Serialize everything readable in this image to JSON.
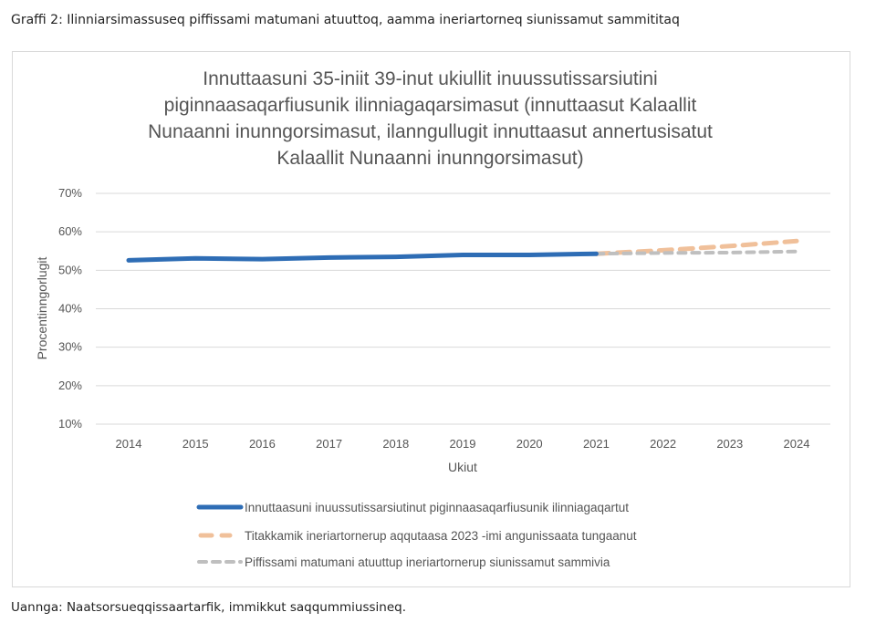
{
  "caption": "Graffi 2: Ilinniarsimassuseq piffissami matumani atuuttoq, aamma ineriartorneq siunissamut sammititaq",
  "source": "Uannga: Naatsorsueqqissaartarfik, immikkut saqqummiussineq.",
  "chart_data": {
    "type": "line",
    "title": [
      "Innuttaasuni 35-iniit 39-inut ukiullit inuussutissarsiutini",
      "piginnaasaqarfiusunik ilinniagaqarsimasut (innuttaasut Kalaallit",
      "Nunaanni inunngorsimasut, ilanngullugit innuttaasut annertusisatut",
      "Kalaallit Nunaanni inunngorsimasut)"
    ],
    "xlabel": "Ukiut",
    "ylabel": "Procentinngorlugit",
    "x": [
      2014,
      2015,
      2016,
      2017,
      2018,
      2019,
      2020,
      2021,
      2022,
      2023,
      2024
    ],
    "yticks": [
      "10%",
      "20%",
      "30%",
      "40%",
      "50%",
      "60%",
      "70%"
    ],
    "ylim": [
      10,
      70
    ],
    "grid": true,
    "legend_position": "bottom",
    "series": [
      {
        "name": "Innuttaasuni inuussutissarsiutinut piginnaasaqarfiusunik ilinniagaqartut",
        "color": "#2e6db5",
        "style": "solid",
        "x": [
          2014,
          2015,
          2016,
          2017,
          2018,
          2019,
          2020,
          2021
        ],
        "values": [
          52.6,
          53.1,
          52.9,
          53.3,
          53.5,
          54.0,
          54.0,
          54.3
        ]
      },
      {
        "name": "Titakkamik ineriartornerup aqqutaasa 2023 -imi angunissaata tungaanut",
        "color": "#f0c09a",
        "style": "dash",
        "x": [
          2021,
          2022,
          2023,
          2024
        ],
        "values": [
          54.3,
          55.2,
          56.3,
          57.6
        ]
      },
      {
        "name": "Piffissami matumani atuuttup ineriartornerup siunissamut sammivia",
        "color": "#bfbfbf",
        "style": "dash-small",
        "x": [
          2021,
          2022,
          2023,
          2024
        ],
        "values": [
          54.3,
          54.5,
          54.6,
          54.9
        ]
      }
    ]
  }
}
